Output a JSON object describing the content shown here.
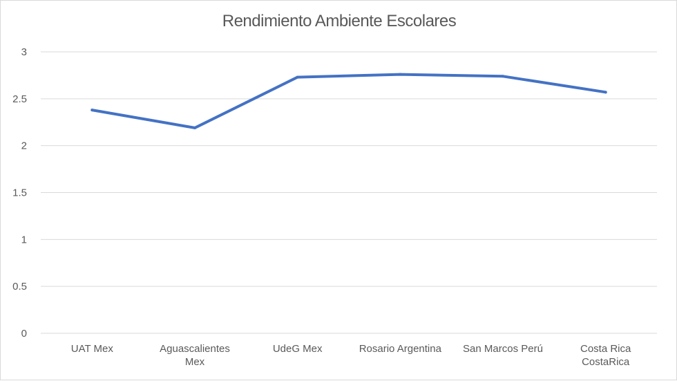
{
  "chart_data": {
    "type": "line",
    "title": "Rendimiento Ambiente Escolares",
    "categories": [
      [
        "UAT Mex"
      ],
      [
        "Aguascalientes",
        "Mex"
      ],
      [
        "UdeG Mex"
      ],
      [
        "Rosario Argentina"
      ],
      [
        "San Marcos Perú"
      ],
      [
        "Costa Rica",
        "CostaRica"
      ]
    ],
    "series": [
      {
        "values": [
          2.38,
          2.19,
          2.73,
          2.76,
          2.74,
          2.57
        ],
        "color": "#4472c4"
      }
    ],
    "ylim": [
      0,
      3
    ],
    "yticks": [
      "0",
      "0.5",
      "1",
      "1.5",
      "2",
      "2.5",
      "3"
    ],
    "grid": true,
    "legend": "none"
  }
}
